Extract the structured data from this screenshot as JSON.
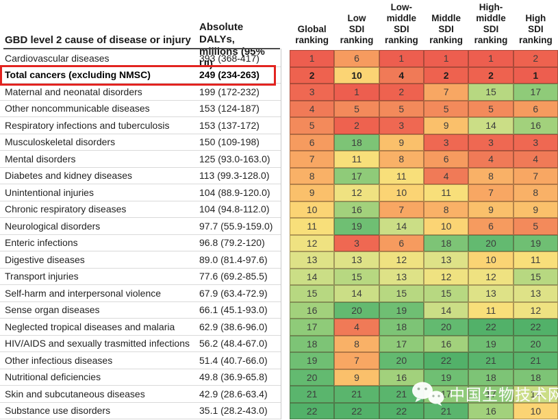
{
  "chart_data": {
    "type": "heatmap",
    "row_header": "GBD level 2 cause of disease or injury",
    "value_header": "Absolute DALYs,\nmillions (95% UI)",
    "columns": [
      "Global\nranking",
      "Low\nSDI\nranking",
      "Low-\nmiddle\nSDI\nranking",
      "Middle\nSDI\nranking",
      "High-\nmiddle\nSDI\nranking",
      "High\nSDI\nranking"
    ],
    "rank_scale_note": "rank 1 = red (highest burden) to rank 22 = green (lowest)",
    "rows": [
      {
        "cause": "Cardiovascular diseases",
        "dalys": "393 (368-417)",
        "ranks": [
          1,
          6,
          1,
          1,
          1,
          2
        ],
        "highlight": false
      },
      {
        "cause": "Total cancers (excluding NMSC)",
        "dalys": "249 (234-263)",
        "ranks": [
          2,
          10,
          4,
          2,
          2,
          1
        ],
        "highlight": true
      },
      {
        "cause": "Maternal and neonatal disorders",
        "dalys": "199 (172-232)",
        "ranks": [
          3,
          1,
          2,
          7,
          15,
          17
        ],
        "highlight": false
      },
      {
        "cause": "Other noncommunicable diseases",
        "dalys": "153 (124-187)",
        "ranks": [
          4,
          5,
          5,
          5,
          5,
          6
        ],
        "highlight": false
      },
      {
        "cause": "Respiratory infections and tuberculosis",
        "dalys": "153 (137-172)",
        "ranks": [
          5,
          2,
          3,
          9,
          14,
          16
        ],
        "highlight": false
      },
      {
        "cause": "Musculoskeletal disorders",
        "dalys": "150 (109-198)",
        "ranks": [
          6,
          18,
          9,
          3,
          3,
          3
        ],
        "highlight": false
      },
      {
        "cause": "Mental disorders",
        "dalys": "125 (93.0-163.0)",
        "ranks": [
          7,
          11,
          8,
          6,
          4,
          4
        ],
        "highlight": false
      },
      {
        "cause": "Diabetes and kidney diseases",
        "dalys": "113 (99.3-128.0)",
        "ranks": [
          8,
          17,
          11,
          4,
          8,
          7
        ],
        "highlight": false
      },
      {
        "cause": "Unintentional injuries",
        "dalys": "104 (88.9-120.0)",
        "ranks": [
          9,
          12,
          10,
          11,
          7,
          8
        ],
        "highlight": false
      },
      {
        "cause": "Chronic respiratory diseases",
        "dalys": "104 (94.8-112.0)",
        "ranks": [
          10,
          16,
          7,
          8,
          9,
          9
        ],
        "highlight": false
      },
      {
        "cause": "Neurological disorders",
        "dalys": "97.7 (55.9-159.0)",
        "ranks": [
          11,
          19,
          14,
          10,
          6,
          5
        ],
        "highlight": false
      },
      {
        "cause": "Enteric infections",
        "dalys": "96.8 (79.2-120)",
        "ranks": [
          12,
          3,
          6,
          18,
          20,
          19
        ],
        "highlight": false
      },
      {
        "cause": "Digestive diseases",
        "dalys": "89.0 (81.4-97.6)",
        "ranks": [
          13,
          13,
          12,
          13,
          10,
          11
        ],
        "highlight": false
      },
      {
        "cause": "Transport injuries",
        "dalys": "77.6 (69.2-85.5)",
        "ranks": [
          14,
          15,
          13,
          12,
          12,
          15
        ],
        "highlight": false
      },
      {
        "cause": "Self-harm and interpersonal violence",
        "dalys": "67.9 (63.4-72.9)",
        "ranks": [
          15,
          14,
          15,
          15,
          13,
          13
        ],
        "highlight": false
      },
      {
        "cause": "Sense organ diseases",
        "dalys": "66.1 (45.1-93.0)",
        "ranks": [
          16,
          20,
          19,
          14,
          11,
          12
        ],
        "highlight": false
      },
      {
        "cause": "Neglected tropical diseases and malaria",
        "dalys": "62.9 (38.6-96.0)",
        "ranks": [
          17,
          4,
          18,
          20,
          22,
          22
        ],
        "highlight": false
      },
      {
        "cause": "HIV/AIDS and sexually trasmitted infections",
        "dalys": "56.2 (48.4-67.0)",
        "ranks": [
          18,
          8,
          17,
          16,
          19,
          20
        ],
        "highlight": false
      },
      {
        "cause": "Other infectious diseases",
        "dalys": "51.4 (40.7-66.0)",
        "ranks": [
          19,
          7,
          20,
          22,
          21,
          21
        ],
        "highlight": false
      },
      {
        "cause": "Nutritional deficiencies",
        "dalys": "49.8 (36.9-65.8)",
        "ranks": [
          20,
          9,
          16,
          19,
          18,
          18
        ],
        "highlight": false
      },
      {
        "cause": "Skin and subcutaneous diseases",
        "dalys": "42.9 (28.6-63.4)",
        "ranks": [
          21,
          21,
          21,
          17,
          17,
          14
        ],
        "highlight": false
      },
      {
        "cause": "Substance use disorders",
        "dalys": "35.1 (28.2-43.0)",
        "ranks": [
          22,
          22,
          22,
          21,
          16,
          10
        ],
        "highlight": false
      }
    ],
    "color_scale": {
      "1": "#ed5e4f",
      "2": "#ee624f",
      "3": "#ef6852",
      "4": "#f07a57",
      "5": "#f38a5b",
      "6": "#f69b5f",
      "7": "#f8a763",
      "8": "#f9b167",
      "9": "#fac06b",
      "10": "#fbd474",
      "11": "#f8df7a",
      "12": "#efe281",
      "13": "#dee287",
      "14": "#cbde86",
      "15": "#b7d881",
      "16": "#a2d17c",
      "17": "#8fcb79",
      "18": "#7dc476",
      "19": "#6fbf73",
      "20": "#63ba70",
      "21": "#5ab56d",
      "22": "#52b169"
    },
    "highlighted_row": "Total cancers (excluding NMSC)",
    "highlight_box_color": "#e2231f"
  },
  "watermark": {
    "text": "中国生物技术网",
    "icon": "wechat-icon",
    "color": "#ffffff"
  }
}
